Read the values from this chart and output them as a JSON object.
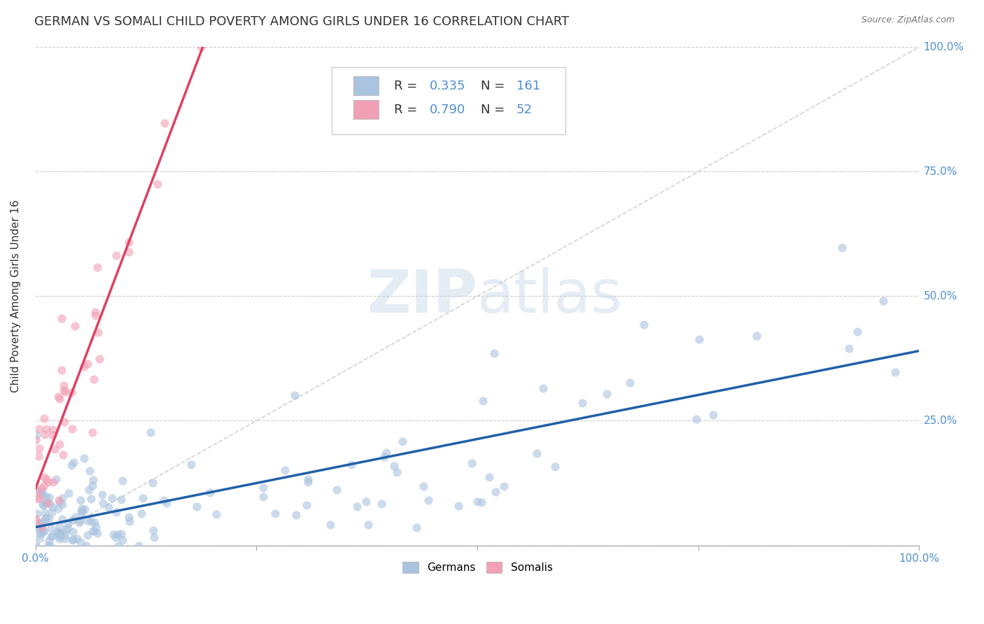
{
  "title": "GERMAN VS SOMALI CHILD POVERTY AMONG GIRLS UNDER 16 CORRELATION CHART",
  "source": "Source: ZipAtlas.com",
  "ylabel": "Child Poverty Among Girls Under 16",
  "xlim": [
    0,
    1
  ],
  "ylim": [
    0,
    1
  ],
  "german_R": 0.335,
  "german_N": 161,
  "somali_R": 0.79,
  "somali_N": 52,
  "german_color": "#aac4e0",
  "somali_color": "#f2a0b5",
  "german_line_color": "#2060a8",
  "somali_line_color": "#e04060",
  "diag_line_color": "#c8c8c8",
  "watermark_color": "#c5d5e8",
  "background_color": "#ffffff",
  "title_color": "#333333",
  "tick_color": "#5090d0",
  "title_fontsize": 13,
  "axis_label_fontsize": 11,
  "tick_fontsize": 11,
  "grid_color": "#cccccc",
  "scatter_size": 70,
  "scatter_alpha": 0.6
}
